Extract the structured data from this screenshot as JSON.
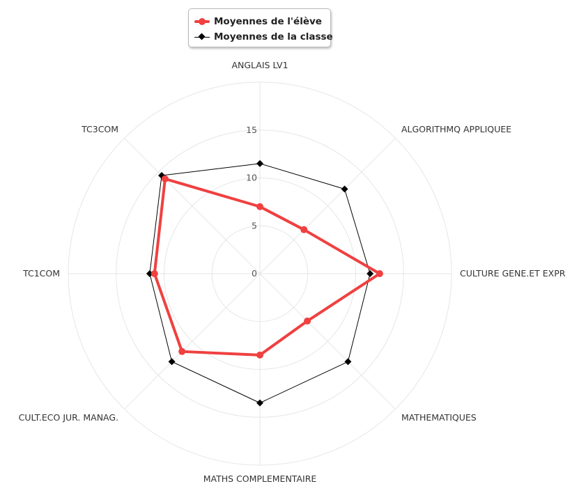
{
  "legend": {
    "items": [
      {
        "label": "Moyennes de l'élève",
        "color": "#f04040",
        "marker": "circle"
      },
      {
        "label": "Moyennes de la classe",
        "color": "#000000",
        "marker": "diamond"
      }
    ]
  },
  "chart_data": {
    "type": "radar",
    "categories": [
      "ANGLAIS LV1",
      "ALGORITHMQ APPLIQUEE",
      "CULTURE GENE.ET EXPR",
      "MATHEMATIQUES",
      "MATHS COMPLEMENTAIRE",
      "CULT.ECO JUR. MANAG.",
      "TC1COM",
      "TC3COM"
    ],
    "series": [
      {
        "name": "Moyennes de l'élève",
        "color": "#f04040",
        "values": [
          7,
          6.5,
          12.5,
          7,
          8.5,
          11.5,
          11,
          14
        ]
      },
      {
        "name": "Moyennes de la classe",
        "color": "#000000",
        "values": [
          11.5,
          12.5,
          11.5,
          13,
          13.5,
          13,
          11.5,
          14.5
        ]
      }
    ],
    "radial_ticks": [
      0,
      5,
      10,
      15
    ],
    "rlim": [
      0,
      20
    ],
    "grid": true,
    "legend_position": "top-center"
  }
}
